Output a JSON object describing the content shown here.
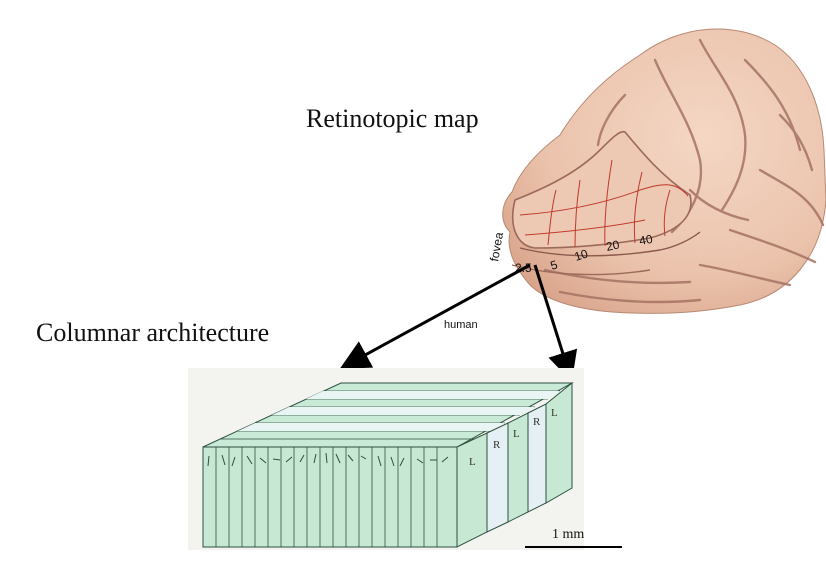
{
  "labels": {
    "retinotopic_map": "Retinotopic map",
    "columnar_architecture": "Columnar architecture",
    "fovea": "fovea",
    "human": "human",
    "scale": "1 mm"
  },
  "eccentricity_marks": [
    "2.5",
    "5",
    "10",
    "20",
    "40"
  ],
  "column_letters": [
    "L",
    "R",
    "L",
    "R",
    "L"
  ],
  "colors": {
    "brain_fill": "#ecc6b0",
    "brain_shadow": "#c99682",
    "sulcus": "#a57363",
    "map_lines": "#c0392b",
    "column_green": "#c7e9d3",
    "column_pale": "#e4f0f3",
    "column_edge": "#2d4f3e",
    "arrow": "#000000"
  }
}
